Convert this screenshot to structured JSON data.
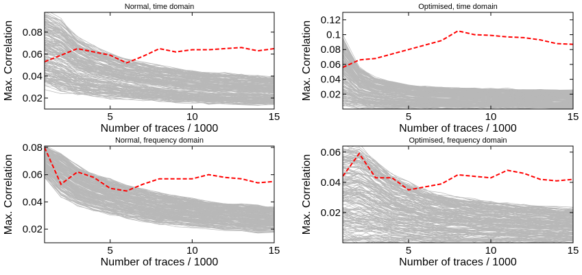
{
  "chart_data": [
    {
      "type": "line",
      "title": "Normal, time domain",
      "xlabel": "Number of traces / 1000",
      "ylabel": "Max. Correlation",
      "xlim": [
        1,
        15
      ],
      "ylim": [
        0.01,
        0.098
      ],
      "xticks": [
        5,
        10,
        15
      ],
      "yticks": [
        0.02,
        0.04,
        0.06,
        0.08
      ],
      "ytick_labels": [
        "0.02",
        "0.04",
        "0.06",
        "0.08"
      ],
      "grid": false,
      "legend": "none",
      "highlight_color": "#ff0000",
      "background_color": "#b8b8b8",
      "highlight": {
        "x": [
          1,
          2,
          3,
          4,
          5,
          6,
          7,
          8,
          9,
          10,
          11,
          12,
          13,
          14,
          15
        ],
        "y": [
          0.053,
          0.059,
          0.065,
          0.062,
          0.059,
          0.052,
          0.058,
          0.065,
          0.062,
          0.064,
          0.064,
          0.065,
          0.066,
          0.063,
          0.065
        ]
      },
      "background_band": {
        "count": 200,
        "x": [
          1,
          2,
          3,
          4,
          5,
          6,
          7,
          8,
          9,
          10,
          11,
          12,
          13,
          14,
          15
        ],
        "low": [
          0.03,
          0.026,
          0.023,
          0.021,
          0.02,
          0.019,
          0.018,
          0.017,
          0.016,
          0.016,
          0.015,
          0.015,
          0.014,
          0.014,
          0.014
        ],
        "high": [
          0.098,
          0.09,
          0.075,
          0.066,
          0.06,
          0.055,
          0.052,
          0.049,
          0.047,
          0.045,
          0.043,
          0.042,
          0.041,
          0.04,
          0.039
        ]
      }
    },
    {
      "type": "line",
      "title": "Optimised, time domain",
      "xlabel": "Number of traces / 1000",
      "ylabel": "Max. Correlation",
      "xlim": [
        1,
        15
      ],
      "ylim": [
        0.0,
        0.13
      ],
      "xticks": [
        5,
        10,
        15
      ],
      "yticks": [
        0.02,
        0.04,
        0.06,
        0.08,
        0.1,
        0.12
      ],
      "ytick_labels": [
        "0.02",
        "0.04",
        "0.06",
        "0.08",
        "0.1",
        "0.12"
      ],
      "grid": false,
      "legend": "none",
      "highlight_color": "#ff0000",
      "background_color": "#b8b8b8",
      "highlight": {
        "x": [
          1,
          2,
          3,
          4,
          5,
          6,
          7,
          8,
          9,
          10,
          11,
          12,
          13,
          14,
          15
        ],
        "y": [
          0.056,
          0.066,
          0.068,
          0.074,
          0.08,
          0.086,
          0.092,
          0.105,
          0.1,
          0.099,
          0.097,
          0.096,
          0.093,
          0.088,
          0.087
        ]
      },
      "background_band": {
        "count": 200,
        "x": [
          1,
          2,
          3,
          4,
          5,
          6,
          7,
          8,
          9,
          10,
          11,
          12,
          13,
          14,
          15
        ],
        "low": [
          0.002,
          0.002,
          0.001,
          0.001,
          0.001,
          0.001,
          0.001,
          0.001,
          0.001,
          0.001,
          0.001,
          0.001,
          0.001,
          0.001,
          0.001
        ],
        "high": [
          0.095,
          0.055,
          0.042,
          0.036,
          0.032,
          0.03,
          0.029,
          0.028,
          0.028,
          0.027,
          0.027,
          0.026,
          0.026,
          0.025,
          0.025
        ]
      }
    },
    {
      "type": "line",
      "title": "Normal, frequency domain",
      "xlabel": "Number of traces / 1000",
      "ylabel": "Max. Correlation",
      "xlim": [
        1,
        15
      ],
      "ylim": [
        0.01,
        0.081
      ],
      "xticks": [
        5,
        10,
        15
      ],
      "yticks": [
        0.02,
        0.04,
        0.06,
        0.08
      ],
      "ytick_labels": [
        "0.02",
        "0.04",
        "0.06",
        "0.08"
      ],
      "grid": false,
      "legend": "none",
      "highlight_color": "#ff0000",
      "background_color": "#b8b8b8",
      "highlight": {
        "x": [
          1,
          2,
          3,
          4,
          5,
          6,
          7,
          8,
          9,
          10,
          11,
          12,
          13,
          14,
          15
        ],
        "y": [
          0.08,
          0.053,
          0.062,
          0.058,
          0.05,
          0.048,
          0.053,
          0.057,
          0.057,
          0.057,
          0.06,
          0.058,
          0.057,
          0.054,
          0.055
        ]
      },
      "background_band": {
        "count": 200,
        "x": [
          1,
          2,
          3,
          4,
          5,
          6,
          7,
          8,
          9,
          10,
          11,
          12,
          13,
          14,
          15
        ],
        "low": [
          0.058,
          0.045,
          0.038,
          0.034,
          0.031,
          0.028,
          0.026,
          0.024,
          0.023,
          0.022,
          0.021,
          0.02,
          0.019,
          0.018,
          0.018
        ],
        "high": [
          0.081,
          0.075,
          0.066,
          0.06,
          0.056,
          0.052,
          0.049,
          0.046,
          0.044,
          0.042,
          0.04,
          0.039,
          0.038,
          0.037,
          0.036
        ]
      }
    },
    {
      "type": "line",
      "title": "Optimised, frequency domain",
      "xlabel": "Number of traces / 1000",
      "ylabel": "Max. Correlation",
      "xlim": [
        1,
        15
      ],
      "ylim": [
        0.0,
        0.064
      ],
      "xticks": [
        5,
        10,
        15
      ],
      "yticks": [
        0.02,
        0.04,
        0.06
      ],
      "ytick_labels": [
        "0.02",
        "0.04",
        "0.06"
      ],
      "grid": false,
      "legend": "none",
      "highlight_color": "#ff0000",
      "background_color": "#b8b8b8",
      "highlight": {
        "x": [
          1,
          2,
          3,
          4,
          5,
          6,
          7,
          8,
          9,
          10,
          11,
          12,
          13,
          14,
          15
        ],
        "y": [
          0.044,
          0.059,
          0.043,
          0.043,
          0.035,
          0.037,
          0.039,
          0.045,
          0.044,
          0.043,
          0.048,
          0.046,
          0.042,
          0.041,
          0.042
        ]
      },
      "background_band": {
        "count": 200,
        "x": [
          1,
          2,
          3,
          4,
          5,
          6,
          7,
          8,
          9,
          10,
          11,
          12,
          13,
          14,
          15
        ],
        "low": [
          0.002,
          0.001,
          0.001,
          0.001,
          0.001,
          0.001,
          0.001,
          0.001,
          0.001,
          0.001,
          0.001,
          0.001,
          0.001,
          0.001,
          0.001
        ],
        "high": [
          0.064,
          0.064,
          0.055,
          0.045,
          0.04,
          0.035,
          0.032,
          0.03,
          0.028,
          0.027,
          0.026,
          0.025,
          0.024,
          0.023,
          0.023
        ]
      }
    }
  ]
}
